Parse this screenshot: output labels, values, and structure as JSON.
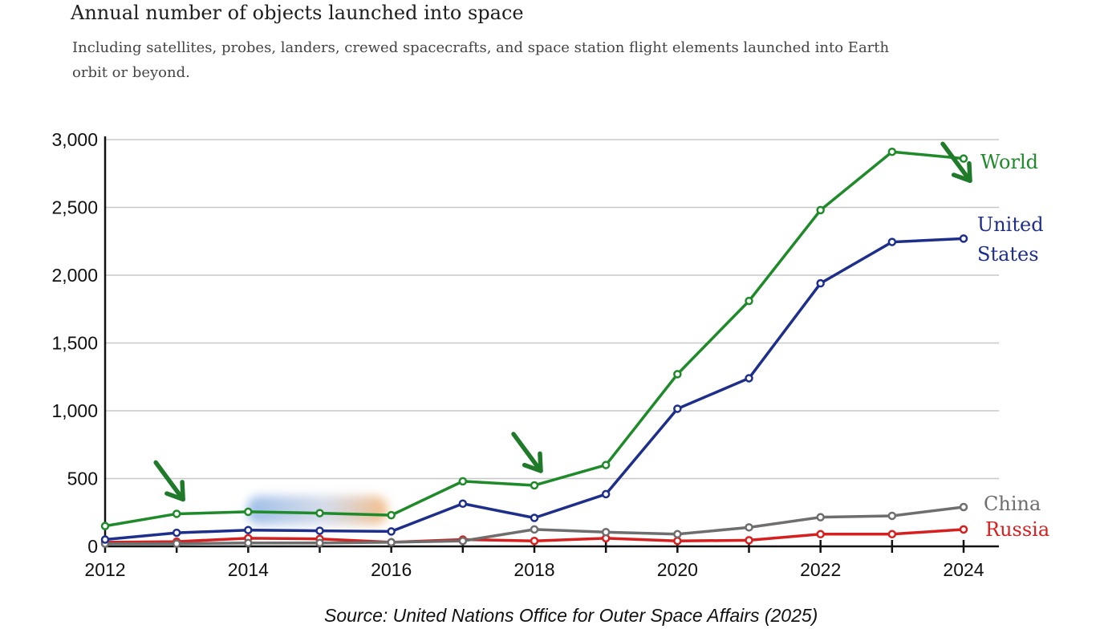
{
  "header": {
    "title": "Annual number of objects launched into space",
    "subtitle": "Including satellites, probes, landers, crewed spacecrafts, and space station flight elements launched into Earth orbit or beyond."
  },
  "footer": {
    "source": "Source: United Nations Office for Outer Space Affairs (2025)"
  },
  "colors": {
    "World": "#1f8a2a",
    "United States": "#1d2f8a",
    "China": "#6e6e6e",
    "Russia": "#d6201f",
    "arrow": "#1f7a2a",
    "grid": "#c8c8c8"
  },
  "chart_data": {
    "type": "line",
    "title": "Annual number of objects launched into space",
    "subtitle": "Including satellites, probes, landers, crewed spacecrafts, and space station flight elements launched into Earth orbit or beyond.",
    "xlabel": "",
    "ylabel": "",
    "x": [
      2012,
      2013,
      2014,
      2015,
      2016,
      2017,
      2018,
      2019,
      2020,
      2021,
      2022,
      2023,
      2024
    ],
    "xlim": [
      2012,
      2024
    ],
    "ylim": [
      0,
      3000
    ],
    "x_ticks": [
      "2012",
      "2014",
      "2016",
      "2018",
      "2020",
      "2022",
      "2024"
    ],
    "y_ticks": [
      "0",
      "500",
      "1,000",
      "1,500",
      "2,000",
      "2,500",
      "3,000"
    ],
    "y_tick_values": [
      0,
      500,
      1000,
      1500,
      2000,
      2500,
      3000
    ],
    "grid": true,
    "legend": "direct labels at line ends (right)",
    "series": [
      {
        "name": "World",
        "label_lines": [
          "World"
        ],
        "values": [
          150,
          240,
          255,
          245,
          230,
          480,
          450,
          600,
          1270,
          1810,
          2480,
          2910,
          2860
        ]
      },
      {
        "name": "United States",
        "label_lines": [
          "United",
          "States"
        ],
        "values": [
          50,
          100,
          120,
          115,
          110,
          315,
          210,
          385,
          1015,
          1240,
          1940,
          2245,
          2270
        ]
      },
      {
        "name": "China",
        "label_lines": [
          "China"
        ],
        "values": [
          20,
          20,
          25,
          25,
          30,
          40,
          125,
          105,
          90,
          140,
          215,
          225,
          290
        ]
      },
      {
        "name": "Russia",
        "label_lines": [
          "Russia"
        ],
        "values": [
          30,
          35,
          60,
          55,
          30,
          50,
          40,
          60,
          40,
          45,
          90,
          90,
          125
        ]
      }
    ],
    "annotations": [
      {
        "type": "arrow",
        "year": 2013,
        "value": 240
      },
      {
        "type": "arrow",
        "year": 2018,
        "value": 450
      },
      {
        "type": "arrow",
        "year": 2024,
        "value": 2590
      }
    ]
  }
}
